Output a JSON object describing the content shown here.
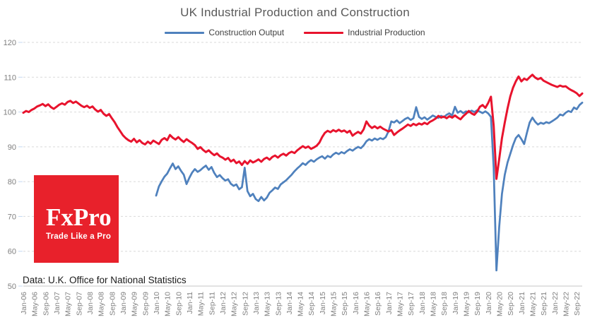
{
  "source_note": "Data: U.K. Office for National Statistics",
  "logo": {
    "text": "FxPro",
    "tagline": "Trade Like a Pro",
    "bg_color": "#e8212b",
    "text_color": "#ffffff"
  },
  "chart_data": {
    "type": "line",
    "title": "UK Industrial Production and Construction",
    "xlabel": "",
    "ylabel": "",
    "ylim": [
      50,
      120
    ],
    "y_ticks": [
      50,
      60,
      70,
      80,
      90,
      100,
      110,
      120
    ],
    "grid": "horizontal-dashed",
    "legend_position": "top-center",
    "x_start": "Jan-2006",
    "x_frequency": "monthly",
    "n_months": 203,
    "x_tick_every_months": 4,
    "x_tick_labels": [
      "Jan-06",
      "May-06",
      "Sep-06",
      "Jan-07",
      "May-07",
      "Sep-07",
      "Jan-08",
      "May-08",
      "Sep-08",
      "Jan-09",
      "May-09",
      "Sep-09",
      "Jan-10",
      "May-10",
      "Sep-10",
      "Jan-11",
      "May-11",
      "Sep-11",
      "Jan-12",
      "May-12",
      "Sep-12",
      "Jan-13",
      "May-13",
      "Sep-13",
      "Jan-14",
      "May-14",
      "Sep-14",
      "Jan-15",
      "May-15",
      "Sep-15",
      "Jan-16",
      "May-16",
      "Sep-16",
      "Jan-17",
      "May-17",
      "Sep-17",
      "Jan-18",
      "May-18",
      "Sep-18",
      "Jan-19",
      "May-19",
      "Sep-19",
      "Jan-20",
      "May-20",
      "Sep-20",
      "Jan-21",
      "May-21",
      "Sep-21",
      "Jan-22",
      "May-22",
      "Sep-22"
    ],
    "series": [
      {
        "name": "Construction Output",
        "color": "#4f81bd",
        "start_month_index": 48,
        "start_label": "Jan-10",
        "values": [
          76.0,
          78.6,
          80.1,
          81.4,
          82.3,
          83.8,
          85.2,
          83.6,
          84.4,
          83.1,
          82.0,
          79.3,
          81.1,
          82.6,
          83.6,
          82.8,
          83.3,
          84.0,
          84.6,
          83.4,
          84.2,
          82.5,
          81.3,
          81.9,
          81.0,
          80.3,
          80.7,
          79.4,
          78.8,
          79.2,
          77.8,
          78.4,
          84.0,
          77.3,
          75.8,
          76.5,
          75.0,
          74.4,
          75.6,
          74.6,
          75.4,
          76.8,
          77.5,
          78.3,
          77.9,
          79.2,
          79.8,
          80.4,
          81.2,
          82.0,
          83.0,
          83.8,
          84.5,
          85.3,
          84.8,
          85.6,
          86.2,
          85.7,
          86.4,
          86.9,
          87.3,
          86.6,
          87.4,
          87.0,
          87.8,
          88.3,
          87.9,
          88.5,
          88.1,
          88.8,
          89.3,
          88.9,
          89.5,
          90.0,
          89.6,
          90.4,
          91.6,
          92.2,
          91.8,
          92.4,
          92.0,
          92.5,
          92.2,
          92.8,
          94.5,
          97.3,
          97.0,
          97.6,
          96.8,
          97.4,
          98.0,
          98.4,
          97.7,
          98.2,
          101.4,
          98.6,
          98.0,
          98.5,
          97.8,
          98.4,
          99.0,
          98.6,
          98.3,
          98.9,
          98.5,
          99.2,
          99.6,
          99.0,
          101.5,
          99.8,
          100.3,
          99.7,
          100.2,
          99.9,
          100.4,
          100.0,
          100.5,
          100.1,
          99.7,
          100.2,
          99.6,
          98.6,
          84.0,
          54.5,
          67.0,
          76.5,
          82.0,
          85.5,
          88.0,
          90.5,
          92.5,
          93.4,
          92.2,
          90.8,
          94.0,
          97.0,
          98.4,
          97.2,
          96.4,
          96.9,
          96.6,
          97.1,
          96.8,
          97.3,
          97.8,
          98.4,
          99.3,
          99.0,
          99.8,
          100.3,
          100.0,
          101.3,
          100.8,
          102.0,
          102.7
        ]
      },
      {
        "name": "Industrial Production",
        "color": "#e8132d",
        "start_month_index": 0,
        "start_label": "Jan-06",
        "values": [
          99.8,
          100.3,
          100.0,
          100.6,
          101.0,
          101.6,
          101.9,
          102.3,
          101.7,
          102.2,
          101.4,
          100.9,
          101.5,
          102.1,
          102.5,
          102.1,
          102.9,
          103.2,
          102.6,
          103.0,
          102.4,
          101.8,
          101.4,
          101.8,
          101.2,
          101.6,
          100.7,
          100.1,
          100.6,
          99.5,
          98.9,
          99.4,
          98.2,
          97.1,
          95.7,
          94.5,
          93.3,
          92.5,
          91.9,
          91.5,
          92.3,
          91.3,
          91.9,
          91.1,
          90.7,
          91.5,
          90.9,
          91.8,
          91.3,
          90.8,
          92.0,
          92.5,
          91.9,
          93.4,
          92.6,
          92.1,
          92.8,
          92.0,
          91.4,
          92.2,
          91.6,
          91.1,
          90.5,
          89.4,
          89.9,
          89.1,
          88.5,
          89.0,
          88.2,
          87.6,
          88.1,
          87.3,
          86.9,
          86.3,
          86.8,
          85.8,
          86.3,
          85.3,
          85.8,
          84.8,
          85.9,
          85.1,
          86.1,
          85.5,
          85.9,
          86.4,
          85.7,
          86.5,
          86.9,
          86.3,
          87.1,
          87.5,
          86.9,
          87.6,
          88.0,
          87.5,
          88.2,
          88.6,
          88.2,
          89.0,
          89.6,
          90.2,
          89.7,
          90.1,
          89.4,
          89.8,
          90.3,
          91.2,
          92.8,
          94.0,
          94.6,
          94.2,
          94.8,
          94.4,
          94.9,
          94.4,
          94.7,
          94.1,
          94.6,
          93.2,
          93.8,
          94.3,
          93.8,
          95.0,
          97.3,
          96.1,
          95.4,
          95.9,
          95.3,
          95.8,
          95.2,
          94.8,
          94.4,
          94.8,
          93.4,
          94.1,
          94.7,
          95.2,
          95.8,
          96.4,
          96.0,
          96.6,
          96.2,
          96.7,
          96.4,
          96.9,
          96.5,
          97.2,
          97.6,
          98.1,
          98.9,
          98.4,
          98.7,
          98.2,
          98.8,
          98.4,
          99.0,
          98.4,
          97.9,
          98.8,
          99.5,
          100.3,
          99.6,
          99.2,
          100.1,
          101.5,
          102.0,
          101.2,
          102.6,
          104.4,
          96.0,
          80.8,
          86.5,
          92.5,
          97.0,
          101.0,
          104.5,
          107.0,
          108.8,
          110.2,
          108.8,
          109.6,
          109.2,
          110.0,
          110.7,
          109.9,
          109.4,
          109.8,
          109.0,
          108.6,
          108.2,
          107.8,
          107.5,
          107.2,
          107.6,
          107.3,
          107.4,
          106.8,
          106.3,
          105.9,
          105.4,
          104.6,
          105.3
        ]
      }
    ]
  }
}
